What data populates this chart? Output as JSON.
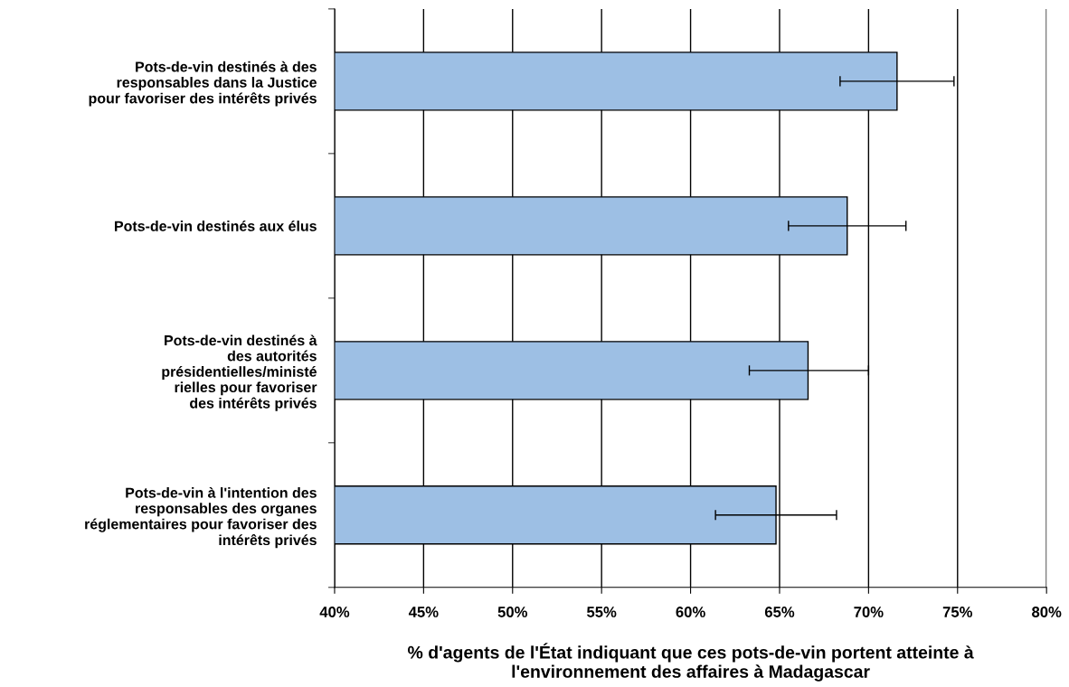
{
  "chart_data": {
    "type": "bar",
    "orientation": "horizontal",
    "categories": [
      "Pots-de-vin destinés à des\nresponsables dans la Justice\npour favoriser des intérêts privés",
      "Pots-de-vin destinés aux élus",
      "Pots-de-vin destinés à\ndes autorités\nprésidentielles/ministé\nrielles pour favoriser\ndes intérêts privés",
      "Pots-de-vin à l'intention des\nresponsables des organes\nréglementaires pour favoriser des\nintérêts privés"
    ],
    "values": [
      71.6,
      68.8,
      66.6,
      64.8
    ],
    "errors": [
      [
        68.4,
        74.8
      ],
      [
        65.5,
        72.1
      ],
      [
        63.3,
        70.0
      ],
      [
        61.4,
        68.2
      ]
    ],
    "color": "#9dbfe4",
    "xlim": [
      40,
      80
    ],
    "xticks": [
      {
        "value": 40,
        "label": "40%"
      },
      {
        "value": 45,
        "label": "45%"
      },
      {
        "value": 50,
        "label": "50%"
      },
      {
        "value": 55,
        "label": "55%"
      },
      {
        "value": 60,
        "label": "60%"
      },
      {
        "value": 65,
        "label": "65%"
      },
      {
        "value": 70,
        "label": "70%"
      },
      {
        "value": 75,
        "label": "75%"
      },
      {
        "value": 80,
        "label": "80%"
      }
    ],
    "xlabel": "% d'agents de l'État indiquant que ces pots-de-vin portent atteinte à\nl'environnement des affaires à Madagascar",
    "grid": "x"
  }
}
